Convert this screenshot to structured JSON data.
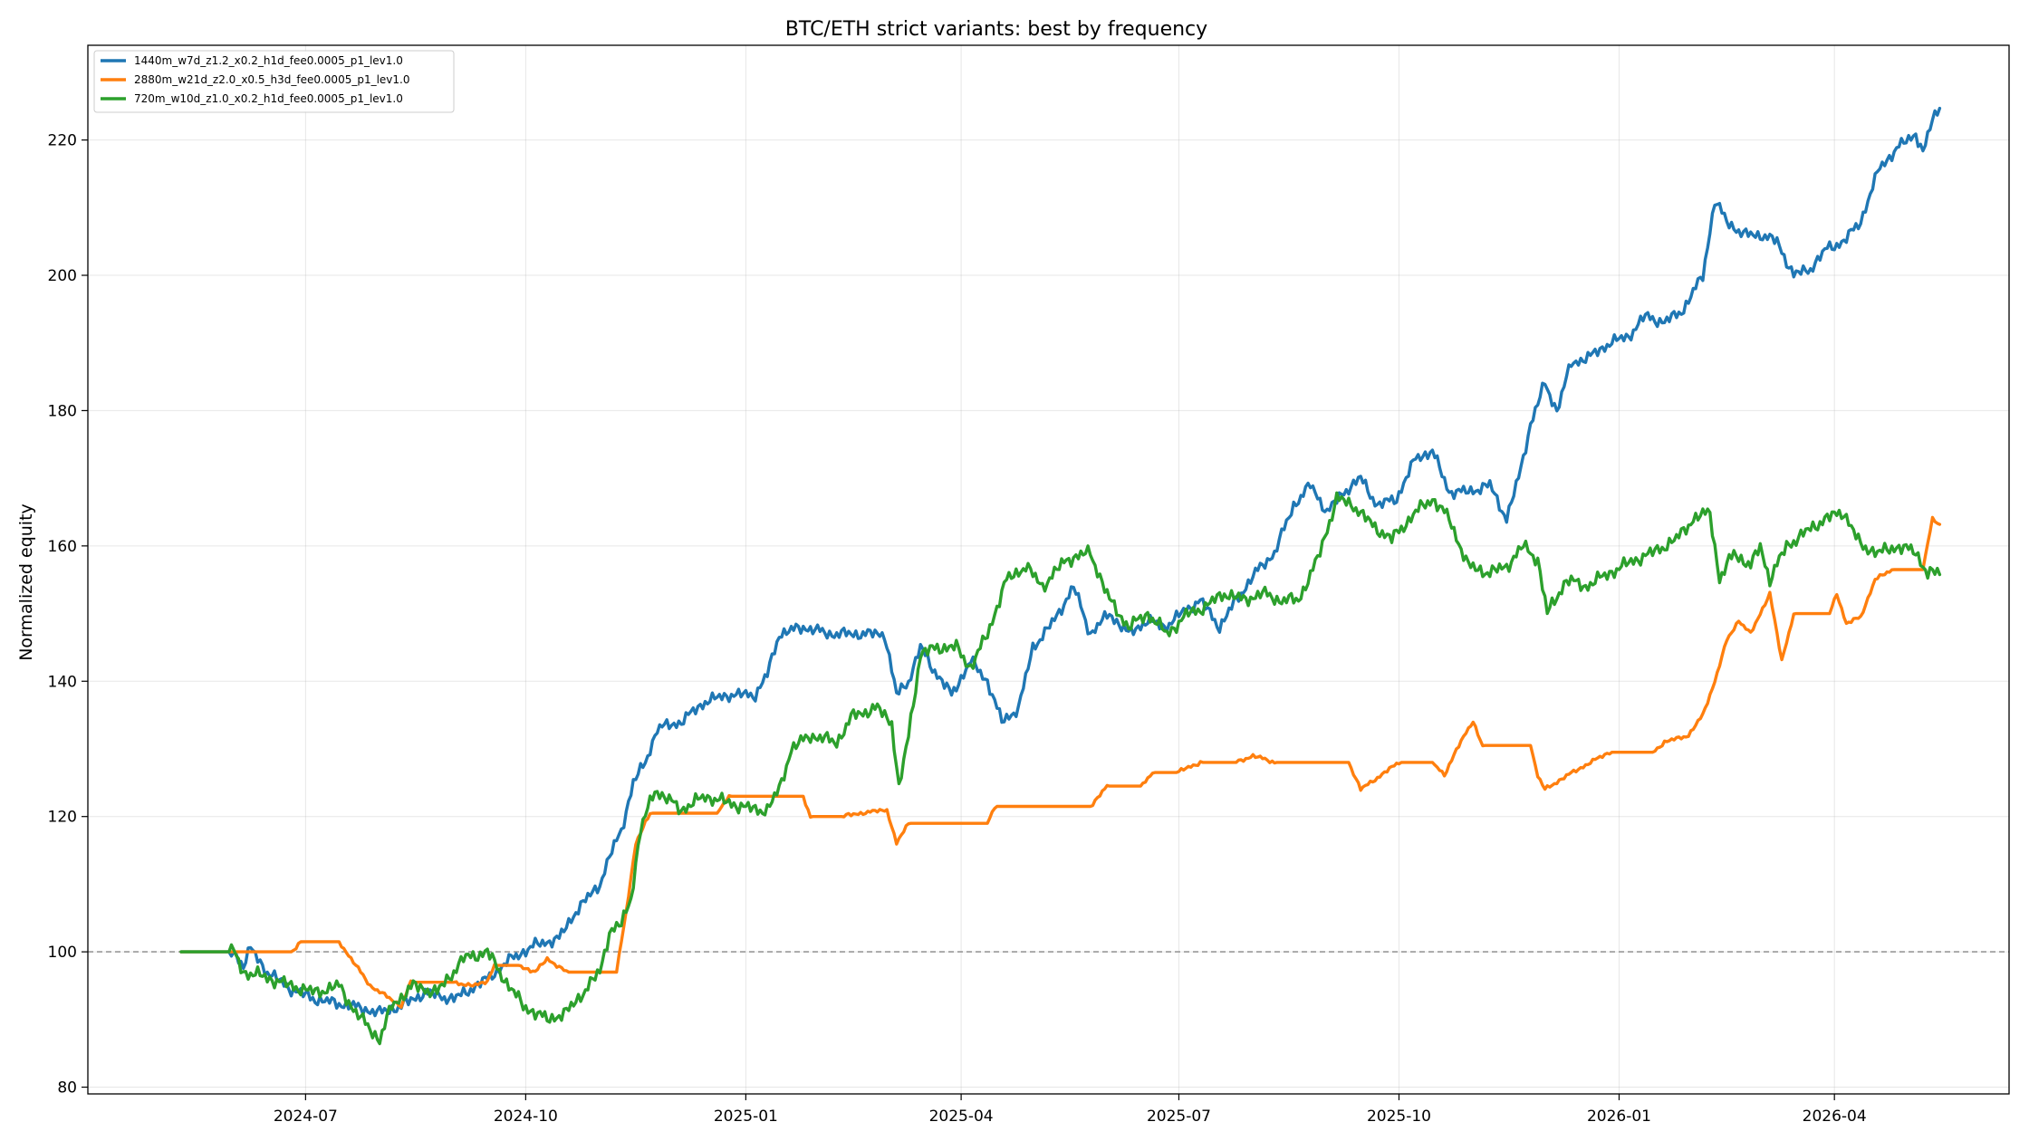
{
  "chart_data": {
    "type": "line",
    "title": "BTC/ETH strict variants: best by frequency",
    "xlabel": "",
    "ylabel": "Normalized equity",
    "xlim": [
      "2024-04-01",
      "2026-06-13"
    ],
    "ylim": [
      79,
      234
    ],
    "x_ticks": [
      "2024-07",
      "2024-10",
      "2025-01",
      "2025-04",
      "2025-07",
      "2025-10",
      "2026-01",
      "2026-04"
    ],
    "y_ticks": [
      80,
      100,
      120,
      140,
      160,
      180,
      200,
      220
    ],
    "grid": true,
    "legend_position": "top-left",
    "reference_line": {
      "y": 100,
      "style": "dashed",
      "color": "#999999"
    },
    "series": [
      {
        "name": "1440m_w7d_z1.2_x0.2_h1d_fee0.0005_p1_lev1.0",
        "color": "#1f77b4",
        "points": [
          [
            "2024-05-10",
            100
          ],
          [
            "2024-06-01",
            100
          ],
          [
            "2024-06-05",
            98
          ],
          [
            "2024-06-08",
            100.5
          ],
          [
            "2024-06-15",
            97
          ],
          [
            "2024-06-25",
            94.5
          ],
          [
            "2024-07-05",
            93
          ],
          [
            "2024-07-20",
            92
          ],
          [
            "2024-08-01",
            91
          ],
          [
            "2024-08-10",
            92
          ],
          [
            "2024-08-20",
            94
          ],
          [
            "2024-09-01",
            93
          ],
          [
            "2024-09-15",
            96
          ],
          [
            "2024-09-25",
            99
          ],
          [
            "2024-10-05",
            101
          ],
          [
            "2024-10-15",
            102
          ],
          [
            "2024-10-22",
            106
          ],
          [
            "2024-11-01",
            110
          ],
          [
            "2024-11-05",
            114
          ],
          [
            "2024-11-10",
            118
          ],
          [
            "2024-11-15",
            125
          ],
          [
            "2024-11-20",
            128
          ],
          [
            "2024-11-25",
            133
          ],
          [
            "2024-12-05",
            134
          ],
          [
            "2024-12-15",
            137
          ],
          [
            "2024-12-25",
            138
          ],
          [
            "2025-01-05",
            138
          ],
          [
            "2025-01-10",
            141
          ],
          [
            "2025-01-15",
            147
          ],
          [
            "2025-01-25",
            148
          ],
          [
            "2025-02-05",
            147
          ],
          [
            "2025-02-20",
            147
          ],
          [
            "2025-02-28",
            147
          ],
          [
            "2025-03-05",
            138
          ],
          [
            "2025-03-10",
            140
          ],
          [
            "2025-03-15",
            145
          ],
          [
            "2025-03-20",
            142
          ],
          [
            "2025-03-28",
            138
          ],
          [
            "2025-04-05",
            143
          ],
          [
            "2025-04-12",
            140
          ],
          [
            "2025-04-18",
            134
          ],
          [
            "2025-04-25",
            136
          ],
          [
            "2025-05-01",
            145
          ],
          [
            "2025-05-10",
            149
          ],
          [
            "2025-05-18",
            154
          ],
          [
            "2025-05-25",
            147
          ],
          [
            "2025-06-02",
            150
          ],
          [
            "2025-06-10",
            147
          ],
          [
            "2025-06-18",
            149
          ],
          [
            "2025-06-25",
            148
          ],
          [
            "2025-07-02",
            150
          ],
          [
            "2025-07-10",
            152
          ],
          [
            "2025-07-18",
            148
          ],
          [
            "2025-07-25",
            152
          ],
          [
            "2025-08-02",
            156
          ],
          [
            "2025-08-10",
            159
          ],
          [
            "2025-08-18",
            166
          ],
          [
            "2025-08-25",
            169
          ],
          [
            "2025-09-01",
            165
          ],
          [
            "2025-09-08",
            168
          ],
          [
            "2025-09-15",
            170
          ],
          [
            "2025-09-22",
            166
          ],
          [
            "2025-09-30",
            167
          ],
          [
            "2025-10-08",
            173
          ],
          [
            "2025-10-15",
            174
          ],
          [
            "2025-10-22",
            168
          ],
          [
            "2025-10-30",
            168
          ],
          [
            "2025-11-08",
            169
          ],
          [
            "2025-11-15",
            164
          ],
          [
            "2025-11-20",
            170
          ],
          [
            "2025-11-25",
            178
          ],
          [
            "2025-12-01",
            184
          ],
          [
            "2025-12-06",
            180
          ],
          [
            "2025-12-12",
            187
          ],
          [
            "2025-12-20",
            188
          ],
          [
            "2025-12-28",
            190
          ],
          [
            "2026-01-05",
            191
          ],
          [
            "2026-01-12",
            194
          ],
          [
            "2026-01-20",
            193
          ],
          [
            "2026-01-28",
            195
          ],
          [
            "2026-02-05",
            200
          ],
          [
            "2026-02-10",
            211
          ],
          [
            "2026-02-15",
            208
          ],
          [
            "2026-02-22",
            206
          ],
          [
            "2026-03-01",
            206
          ],
          [
            "2026-03-08",
            205
          ],
          [
            "2026-03-15",
            200
          ],
          [
            "2026-03-22",
            201
          ],
          [
            "2026-03-29",
            204
          ],
          [
            "2026-04-05",
            205
          ],
          [
            "2026-04-12",
            208
          ],
          [
            "2026-04-20",
            216
          ],
          [
            "2026-04-28",
            219
          ],
          [
            "2026-05-05",
            221
          ],
          [
            "2026-05-08",
            218
          ],
          [
            "2026-05-12",
            223
          ],
          [
            "2026-05-15",
            225
          ]
        ]
      },
      {
        "name": "2880m_w21d_z2.0_x0.5_h3d_fee0.0005_p1_lev1.0",
        "color": "#ff7f0e",
        "points": [
          [
            "2024-05-10",
            100
          ],
          [
            "2024-06-25",
            100
          ],
          [
            "2024-06-29",
            101.5
          ],
          [
            "2024-07-15",
            101.5
          ],
          [
            "2024-07-20",
            99
          ],
          [
            "2024-07-28",
            95
          ],
          [
            "2024-08-10",
            92
          ],
          [
            "2024-08-14",
            95.5
          ],
          [
            "2024-09-01",
            95.5
          ],
          [
            "2024-09-05",
            95
          ],
          [
            "2024-09-15",
            95.5
          ],
          [
            "2024-09-18",
            98
          ],
          [
            "2024-09-28",
            98
          ],
          [
            "2024-10-05",
            97
          ],
          [
            "2024-10-10",
            99
          ],
          [
            "2024-10-18",
            97
          ],
          [
            "2024-11-08",
            97
          ],
          [
            "2024-11-12",
            106
          ],
          [
            "2024-11-16",
            116
          ],
          [
            "2024-11-22",
            120.5
          ],
          [
            "2024-12-20",
            120.5
          ],
          [
            "2024-12-25",
            123
          ],
          [
            "2025-01-25",
            123
          ],
          [
            "2025-01-28",
            120
          ],
          [
            "2025-02-10",
            120
          ],
          [
            "2025-02-18",
            120.5
          ],
          [
            "2025-03-01",
            121
          ],
          [
            "2025-03-05",
            116
          ],
          [
            "2025-03-10",
            119
          ],
          [
            "2025-04-12",
            119
          ],
          [
            "2025-04-15",
            121.5
          ],
          [
            "2025-05-10",
            121.5
          ],
          [
            "2025-05-25",
            121.5
          ],
          [
            "2025-06-01",
            124.5
          ],
          [
            "2025-06-15",
            124.5
          ],
          [
            "2025-06-20",
            126.5
          ],
          [
            "2025-06-30",
            126.5
          ],
          [
            "2025-07-10",
            128
          ],
          [
            "2025-07-25",
            128
          ],
          [
            "2025-08-01",
            129
          ],
          [
            "2025-08-10",
            128
          ],
          [
            "2025-09-10",
            128
          ],
          [
            "2025-09-15",
            124
          ],
          [
            "2025-09-25",
            126.5
          ],
          [
            "2025-10-01",
            128
          ],
          [
            "2025-10-15",
            128
          ],
          [
            "2025-10-20",
            126
          ],
          [
            "2025-10-25",
            130
          ],
          [
            "2025-11-01",
            134
          ],
          [
            "2025-11-05",
            130.5
          ],
          [
            "2025-11-25",
            130.5
          ],
          [
            "2025-11-28",
            126
          ],
          [
            "2025-12-01",
            124
          ],
          [
            "2025-12-10",
            126
          ],
          [
            "2025-12-20",
            128
          ],
          [
            "2025-12-28",
            129.5
          ],
          [
            "2026-01-15",
            129.5
          ],
          [
            "2026-01-20",
            131
          ],
          [
            "2026-01-30",
            132
          ],
          [
            "2026-02-05",
            135
          ],
          [
            "2026-02-10",
            140
          ],
          [
            "2026-02-15",
            146
          ],
          [
            "2026-02-20",
            149
          ],
          [
            "2026-02-25",
            147
          ],
          [
            "2026-03-01",
            150
          ],
          [
            "2026-03-05",
            153
          ],
          [
            "2026-03-10",
            143
          ],
          [
            "2026-03-15",
            150
          ],
          [
            "2026-03-30",
            150
          ],
          [
            "2026-04-02",
            153
          ],
          [
            "2026-04-06",
            148.5
          ],
          [
            "2026-04-12",
            149.5
          ],
          [
            "2026-04-18",
            155
          ],
          [
            "2026-04-25",
            156.5
          ],
          [
            "2026-05-08",
            156.5
          ],
          [
            "2026-05-12",
            164
          ],
          [
            "2026-05-15",
            163
          ]
        ]
      },
      {
        "name": "720m_w10d_z1.0_x0.2_h1d_fee0.0005_p1_lev1.0",
        "color": "#2ca02c",
        "points": [
          [
            "2024-05-10",
            100
          ],
          [
            "2024-06-01",
            100
          ],
          [
            "2024-06-05",
            97
          ],
          [
            "2024-06-12",
            96.5
          ],
          [
            "2024-06-25",
            95
          ],
          [
            "2024-07-05",
            94
          ],
          [
            "2024-07-15",
            95
          ],
          [
            "2024-07-22",
            91
          ],
          [
            "2024-08-01",
            87
          ],
          [
            "2024-08-06",
            92
          ],
          [
            "2024-08-15",
            95
          ],
          [
            "2024-08-25",
            94
          ],
          [
            "2024-09-05",
            99
          ],
          [
            "2024-09-15",
            100
          ],
          [
            "2024-09-22",
            96
          ],
          [
            "2024-09-30",
            92
          ],
          [
            "2024-10-10",
            90
          ],
          [
            "2024-10-18",
            91
          ],
          [
            "2024-10-25",
            94
          ],
          [
            "2024-11-01",
            97
          ],
          [
            "2024-11-05",
            103
          ],
          [
            "2024-11-10",
            104
          ],
          [
            "2024-11-14",
            108
          ],
          [
            "2024-11-18",
            118
          ],
          [
            "2024-11-24",
            124
          ],
          [
            "2024-12-05",
            121
          ],
          [
            "2024-12-15",
            123
          ],
          [
            "2024-12-25",
            122
          ],
          [
            "2025-01-05",
            121
          ],
          [
            "2025-01-10",
            121
          ],
          [
            "2025-01-15",
            124
          ],
          [
            "2025-01-20",
            130
          ],
          [
            "2025-01-28",
            132
          ],
          [
            "2025-02-08",
            131
          ],
          [
            "2025-02-15",
            135
          ],
          [
            "2025-02-25",
            136
          ],
          [
            "2025-03-03",
            134
          ],
          [
            "2025-03-06",
            124
          ],
          [
            "2025-03-10",
            132
          ],
          [
            "2025-03-15",
            144
          ],
          [
            "2025-03-22",
            145
          ],
          [
            "2025-03-30",
            145
          ],
          [
            "2025-04-05",
            142
          ],
          [
            "2025-04-12",
            147
          ],
          [
            "2025-04-20",
            155
          ],
          [
            "2025-04-28",
            157
          ],
          [
            "2025-05-05",
            154
          ],
          [
            "2025-05-15",
            158
          ],
          [
            "2025-05-25",
            159
          ],
          [
            "2025-06-02",
            152
          ],
          [
            "2025-06-10",
            148
          ],
          [
            "2025-06-18",
            150
          ],
          [
            "2025-06-26",
            147
          ],
          [
            "2025-07-05",
            150
          ],
          [
            "2025-07-12",
            151
          ],
          [
            "2025-07-20",
            153
          ],
          [
            "2025-07-28",
            152
          ],
          [
            "2025-08-05",
            153
          ],
          [
            "2025-08-12",
            152
          ],
          [
            "2025-08-20",
            152
          ],
          [
            "2025-08-28",
            158
          ],
          [
            "2025-09-05",
            167
          ],
          [
            "2025-09-12",
            166
          ],
          [
            "2025-09-20",
            163
          ],
          [
            "2025-09-28",
            161
          ],
          [
            "2025-10-08",
            165
          ],
          [
            "2025-10-15",
            167
          ],
          [
            "2025-10-22",
            164
          ],
          [
            "2025-10-30",
            157
          ],
          [
            "2025-11-08",
            156
          ],
          [
            "2025-11-15",
            157
          ],
          [
            "2025-11-22",
            160
          ],
          [
            "2025-11-28",
            158
          ],
          [
            "2025-12-02",
            150
          ],
          [
            "2025-12-10",
            155
          ],
          [
            "2025-12-18",
            154
          ],
          [
            "2025-12-28",
            156
          ],
          [
            "2026-01-08",
            158
          ],
          [
            "2026-01-15",
            159
          ],
          [
            "2026-01-25",
            161
          ],
          [
            "2026-02-01",
            164
          ],
          [
            "2026-02-08",
            165
          ],
          [
            "2026-02-12",
            155
          ],
          [
            "2026-02-18",
            159
          ],
          [
            "2026-02-25",
            157
          ],
          [
            "2026-03-01",
            160
          ],
          [
            "2026-03-05",
            155
          ],
          [
            "2026-03-12",
            160
          ],
          [
            "2026-03-20",
            162
          ],
          [
            "2026-03-28",
            164
          ],
          [
            "2026-04-05",
            165
          ],
          [
            "2026-04-12",
            160
          ],
          [
            "2026-04-20",
            159
          ],
          [
            "2026-04-28",
            160
          ],
          [
            "2026-05-05",
            159
          ],
          [
            "2026-05-10",
            156
          ],
          [
            "2026-05-15",
            156
          ]
        ]
      }
    ]
  }
}
